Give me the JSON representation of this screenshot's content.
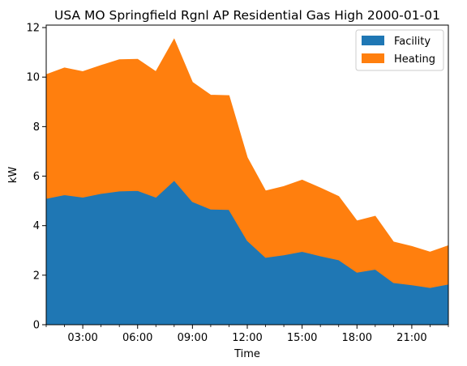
{
  "chart_data": {
    "type": "area",
    "stacked": true,
    "title": "USA MO Springfield Rgnl AP Residential Gas High 2000-01-01",
    "xlabel": "Time",
    "ylabel": "kW",
    "x": [
      "01:00",
      "02:00",
      "03:00",
      "04:00",
      "05:00",
      "06:00",
      "07:00",
      "08:00",
      "09:00",
      "10:00",
      "11:00",
      "12:00",
      "13:00",
      "14:00",
      "15:00",
      "16:00",
      "17:00",
      "18:00",
      "19:00",
      "20:00",
      "21:00",
      "22:00",
      "23:00"
    ],
    "x_ticks": [
      "03:00",
      "06:00",
      "09:00",
      "12:00",
      "15:00",
      "18:00",
      "21:00"
    ],
    "y_ticks": [
      "0",
      "2",
      "4",
      "6",
      "8",
      "10",
      "12"
    ],
    "xlim": [
      "01:00",
      "23:00"
    ],
    "ylim": [
      0,
      12.1
    ],
    "legend_position": "top-right",
    "grid": false,
    "series": [
      {
        "name": "Facility",
        "color": "#1f77b4",
        "values": [
          5.1,
          5.25,
          5.15,
          5.3,
          5.4,
          5.42,
          5.15,
          5.83,
          4.97,
          4.67,
          4.65,
          3.4,
          2.72,
          2.82,
          2.96,
          2.78,
          2.62,
          2.12,
          2.24,
          1.7,
          1.61,
          1.5,
          1.64
        ]
      },
      {
        "name": "Heating",
        "color": "#ff7f0e",
        "values": [
          5.0,
          5.12,
          5.07,
          5.17,
          5.3,
          5.3,
          5.07,
          5.7,
          4.82,
          4.6,
          4.6,
          3.35,
          2.68,
          2.76,
          2.88,
          2.74,
          2.56,
          2.07,
          2.14,
          1.64,
          1.55,
          1.43,
          1.55
        ]
      }
    ]
  }
}
